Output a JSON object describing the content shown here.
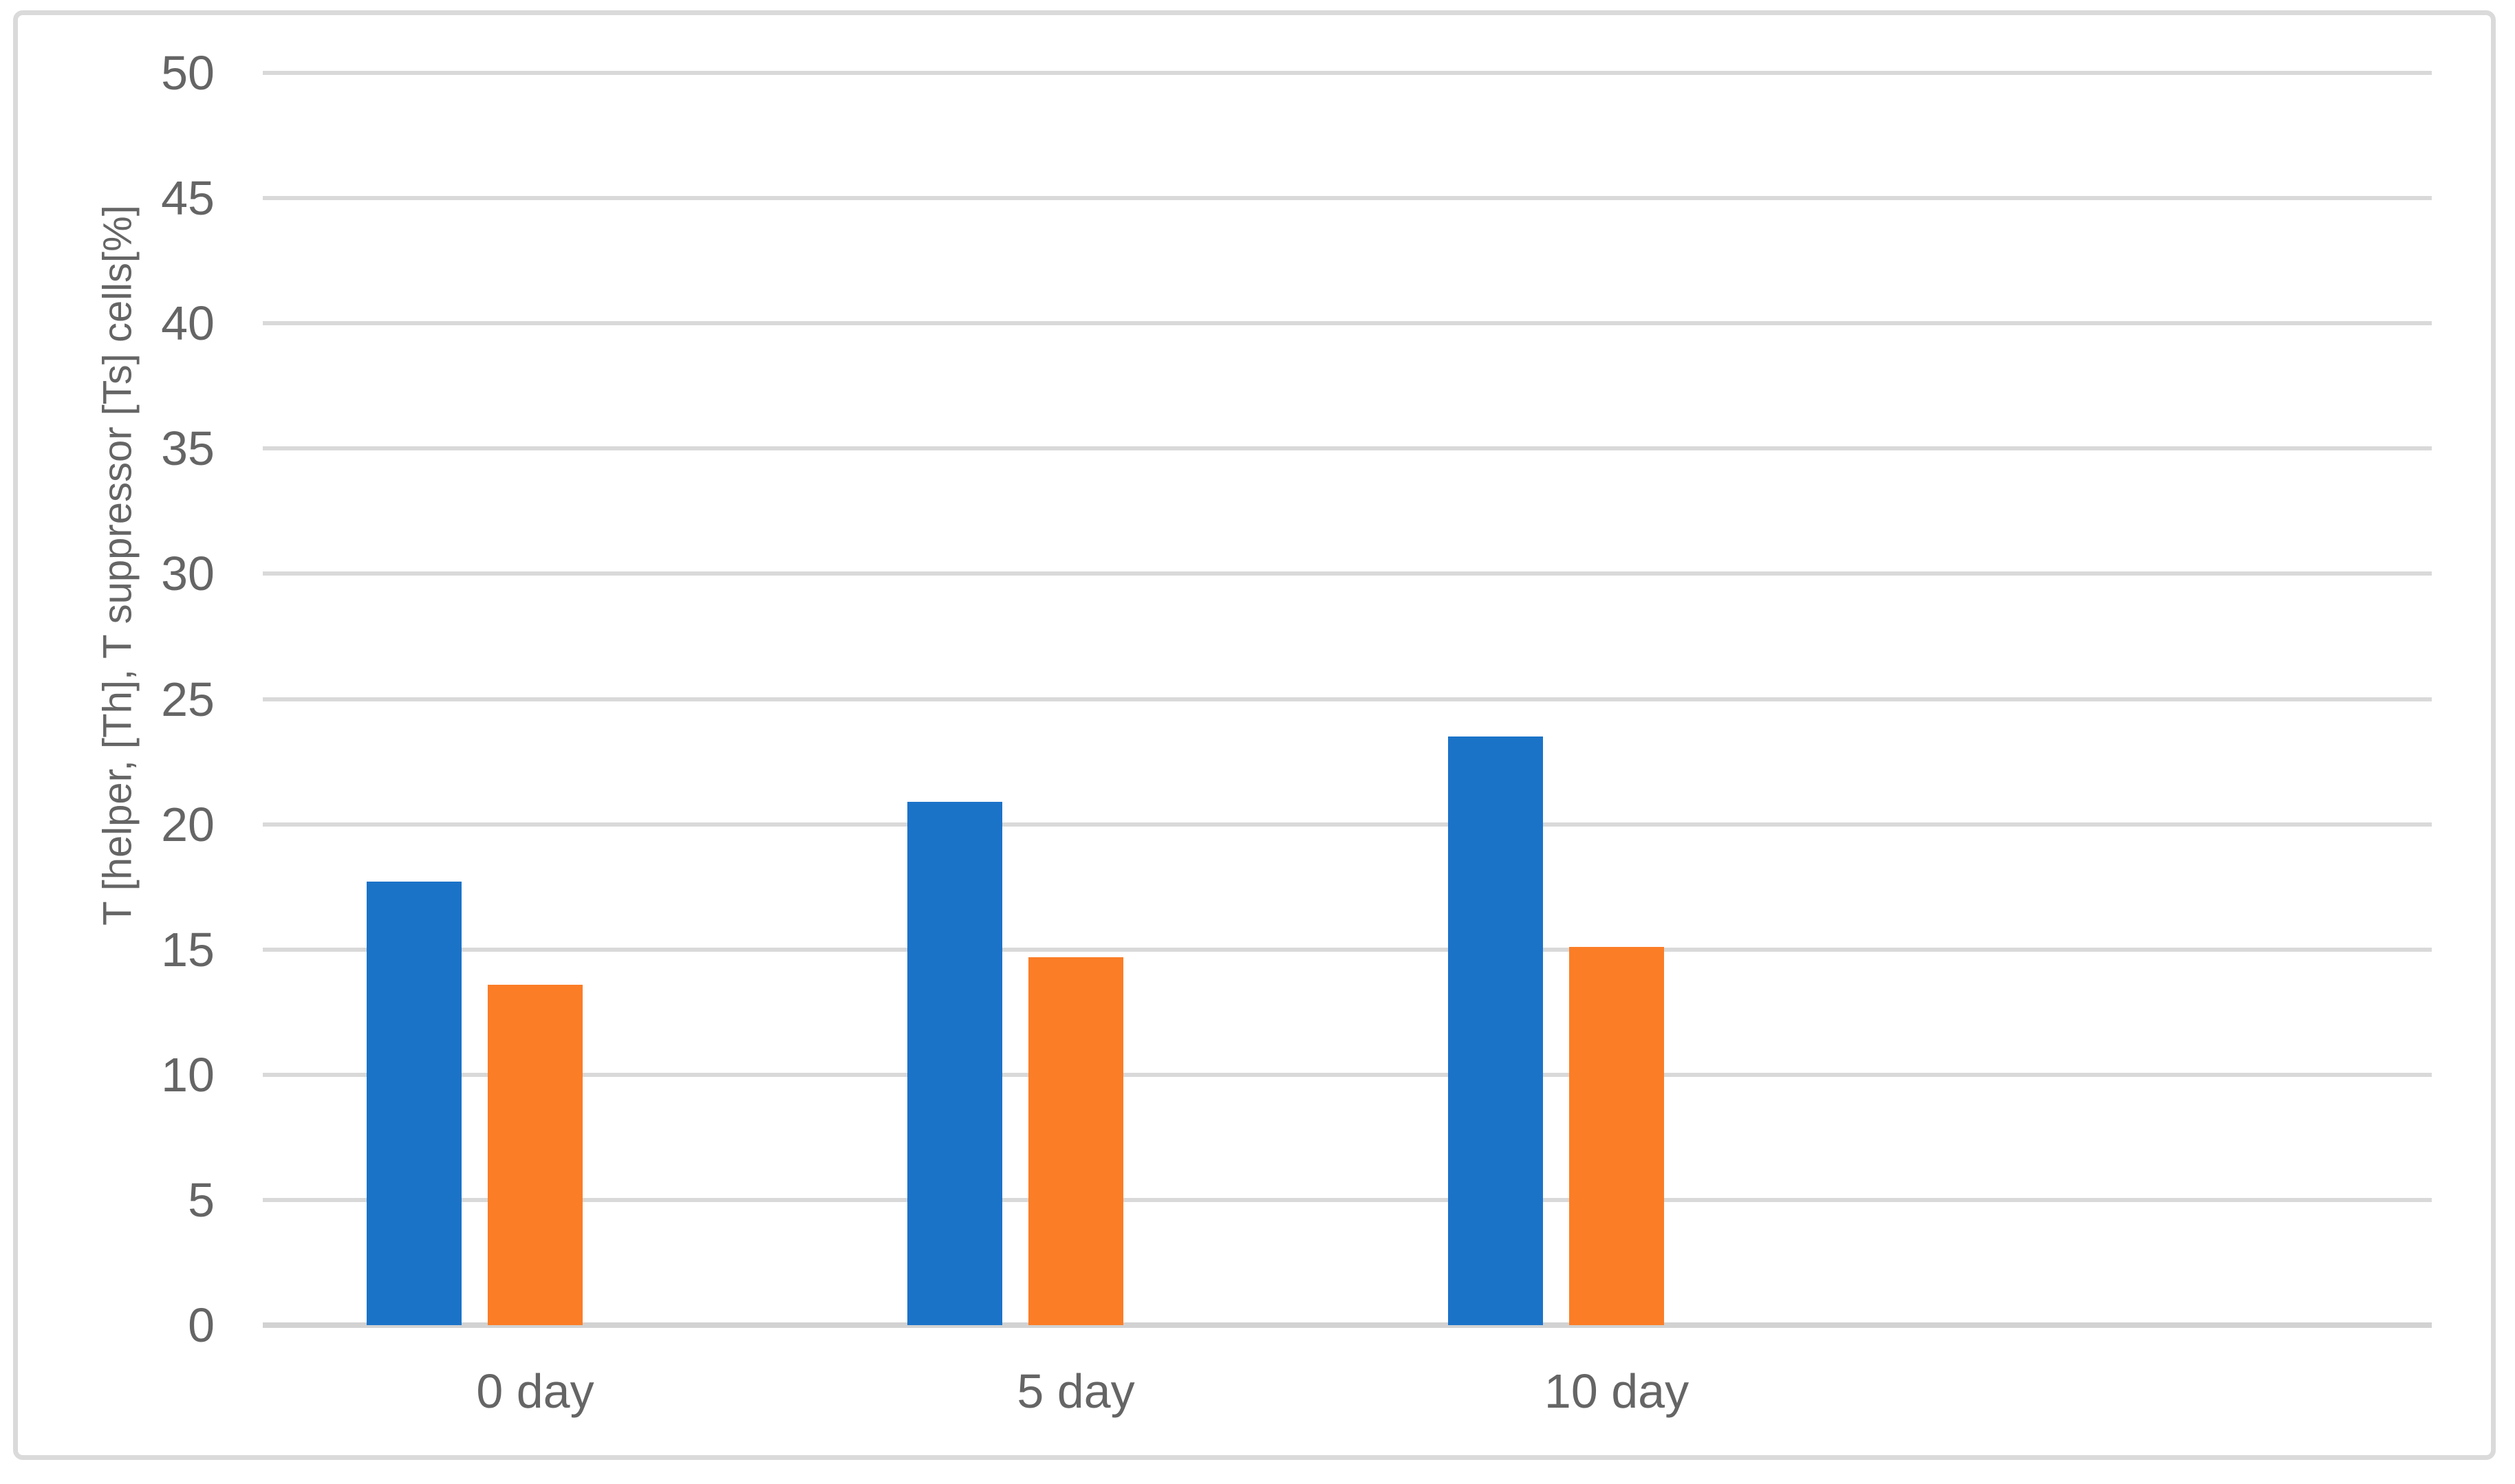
{
  "figure": {
    "background": "#FFFFFF",
    "border_color": "#DADADA",
    "text_color": "#656565"
  },
  "chart_data": {
    "type": "bar",
    "title": "",
    "categories": [
      "0 day",
      "5 day",
      "10 day"
    ],
    "series": [
      {
        "name": "blue",
        "color": "#1B73C8",
        "values": [
          17.7,
          20.9,
          23.5
        ]
      },
      {
        "name": "orange",
        "color": "#FB7D26",
        "values": [
          13.6,
          14.7,
          15.1
        ]
      }
    ],
    "xlabel": "",
    "ylabel": "T [helper, [Th], T suppressor [Ts] cells[%]",
    "ylim": [
      0,
      50
    ],
    "ytick_step": 5,
    "yticks": [
      0,
      5,
      10,
      15,
      20,
      25,
      30,
      35,
      40,
      45,
      50
    ],
    "grid": true,
    "gridline_color": "#D9D9D9",
    "axis_line_color": "#D2D2D2",
    "legend": "none"
  }
}
